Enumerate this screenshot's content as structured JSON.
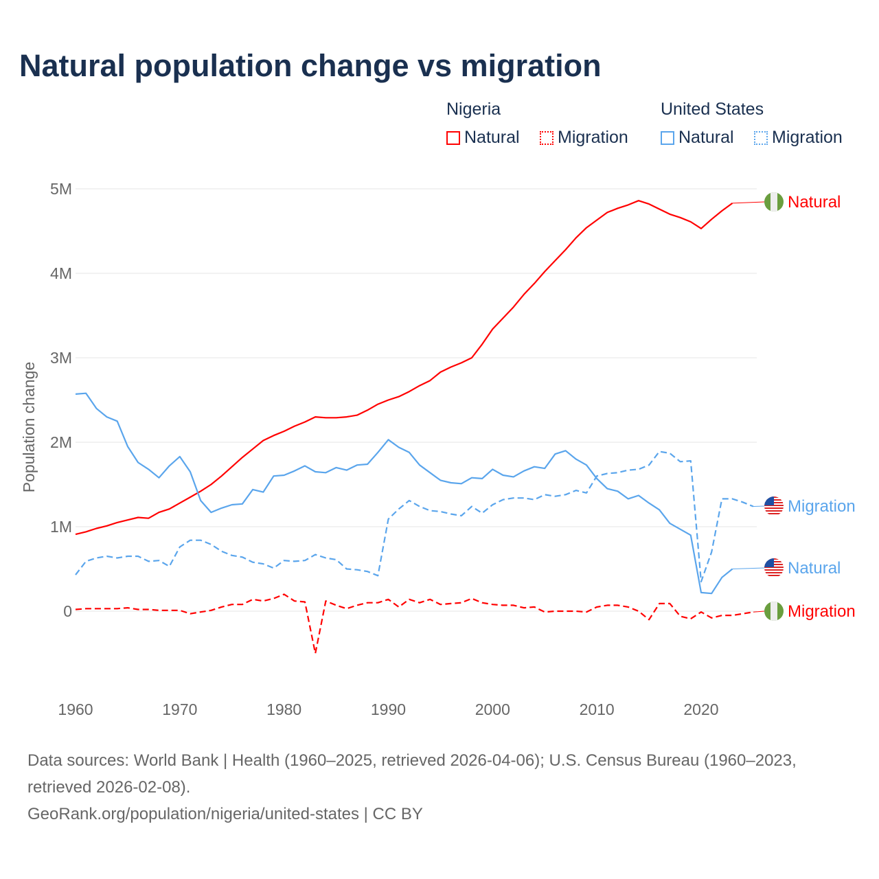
{
  "title": "Natural population change vs migration",
  "legend": {
    "groups": [
      {
        "name": "Nigeria",
        "color": "#ff0000",
        "items": [
          "Natural",
          "Migration"
        ]
      },
      {
        "name": "United States",
        "color": "#5aa5ec",
        "items": [
          "Natural",
          "Migration"
        ]
      }
    ]
  },
  "footer": {
    "sources": "Data sources: World Bank | Health (1960–2025, retrieved 2026-04-06); U.S. Census Bureau (1960–2023, retrieved 2026-02-08).",
    "link": "GeoRank.org/population/nigeria/united-states | CC BY"
  },
  "chart_data": {
    "type": "line",
    "title": "Natural population change vs migration",
    "xlabel": "",
    "ylabel": "Population change",
    "xlim": [
      1960,
      2025
    ],
    "ylim": [
      -0.8,
      5.2
    ],
    "x_ticks": [
      1960,
      1970,
      1980,
      1990,
      2000,
      2010,
      2020
    ],
    "x_tick_labels": [
      "1960",
      "1970",
      "1980",
      "1990",
      "2000",
      "2010",
      "2020"
    ],
    "y_ticks": [
      0,
      1,
      2,
      3,
      4,
      5
    ],
    "y_tick_labels": [
      "0",
      "1M",
      "2M",
      "3M",
      "4M",
      "5M"
    ],
    "y_unit": "millions",
    "grid": true,
    "legend_position": "top-right",
    "series": [
      {
        "name": "Nigeria Natural",
        "end_label": "Natural",
        "color": "#ff0000",
        "dashed": false,
        "flag": "nigeria-flag",
        "start": 1960,
        "values": [
          0.91,
          0.94,
          0.98,
          1.01,
          1.05,
          1.08,
          1.11,
          1.1,
          1.17,
          1.21,
          1.28,
          1.35,
          1.42,
          1.5,
          1.6,
          1.71,
          1.82,
          1.92,
          2.02,
          2.08,
          2.13,
          2.19,
          2.24,
          2.3,
          2.29,
          2.29,
          2.3,
          2.32,
          2.38,
          2.45,
          2.5,
          2.54,
          2.6,
          2.67,
          2.73,
          2.83,
          2.89,
          2.94,
          3.0,
          3.16,
          3.34,
          3.47,
          3.6,
          3.75,
          3.88,
          4.02,
          4.15,
          4.28,
          4.42,
          4.54,
          4.63,
          4.72,
          4.77,
          4.81,
          4.86,
          4.82,
          4.76,
          4.7,
          4.66,
          4.61,
          4.53,
          4.64,
          4.74,
          4.83
        ]
      },
      {
        "name": "Nigeria Migration",
        "end_label": "Migration",
        "color": "#ff0000",
        "dashed": true,
        "flag": "nigeria-flag",
        "start": 1960,
        "values": [
          0.02,
          0.03,
          0.03,
          0.03,
          0.03,
          0.04,
          0.02,
          0.02,
          0.01,
          0.01,
          0.01,
          -0.03,
          -0.01,
          0.01,
          0.05,
          0.08,
          0.08,
          0.14,
          0.12,
          0.15,
          0.2,
          0.12,
          0.11,
          -0.5,
          0.12,
          0.07,
          0.03,
          0.07,
          0.1,
          0.1,
          0.14,
          0.05,
          0.14,
          0.1,
          0.14,
          0.08,
          0.09,
          0.1,
          0.15,
          0.1,
          0.08,
          0.07,
          0.07,
          0.04,
          0.05,
          -0.01,
          0.0,
          0.0,
          0.0,
          -0.01,
          0.05,
          0.07,
          0.07,
          0.05,
          0.0,
          -0.1,
          0.09,
          0.09,
          -0.06,
          -0.09,
          -0.01,
          -0.08,
          -0.05,
          -0.05,
          -0.03,
          -0.01
        ]
      },
      {
        "name": "United States Natural",
        "end_label": "Natural",
        "color": "#5aa5ec",
        "dashed": false,
        "flag": "us-flag",
        "start": 1960,
        "values": [
          2.57,
          2.58,
          2.4,
          2.3,
          2.25,
          1.95,
          1.76,
          1.68,
          1.58,
          1.72,
          1.83,
          1.65,
          1.31,
          1.17,
          1.22,
          1.26,
          1.27,
          1.44,
          1.41,
          1.6,
          1.61,
          1.66,
          1.72,
          1.65,
          1.64,
          1.7,
          1.67,
          1.73,
          1.74,
          1.88,
          2.03,
          1.94,
          1.88,
          1.73,
          1.64,
          1.55,
          1.52,
          1.51,
          1.58,
          1.57,
          1.68,
          1.61,
          1.59,
          1.66,
          1.71,
          1.69,
          1.86,
          1.9,
          1.8,
          1.73,
          1.57,
          1.45,
          1.42,
          1.33,
          1.37,
          1.28,
          1.2,
          1.04,
          0.97,
          0.9,
          0.22,
          0.21,
          0.4,
          0.5
        ]
      },
      {
        "name": "United States Migration",
        "end_label": "Migration",
        "color": "#5aa5ec",
        "dashed": true,
        "flag": "us-flag",
        "start": 1960,
        "values": [
          0.43,
          0.59,
          0.63,
          0.65,
          0.63,
          0.65,
          0.65,
          0.59,
          0.6,
          0.53,
          0.76,
          0.84,
          0.84,
          0.79,
          0.71,
          0.66,
          0.64,
          0.58,
          0.56,
          0.51,
          0.6,
          0.59,
          0.6,
          0.67,
          0.63,
          0.61,
          0.5,
          0.49,
          0.47,
          0.42,
          1.09,
          1.21,
          1.31,
          1.24,
          1.19,
          1.18,
          1.15,
          1.13,
          1.24,
          1.16,
          1.26,
          1.32,
          1.34,
          1.34,
          1.32,
          1.38,
          1.36,
          1.38,
          1.43,
          1.4,
          1.6,
          1.63,
          1.64,
          1.67,
          1.68,
          1.73,
          1.89,
          1.87,
          1.77,
          1.78,
          0.35,
          0.7,
          1.33,
          1.33,
          1.29,
          1.24
        ]
      }
    ]
  }
}
